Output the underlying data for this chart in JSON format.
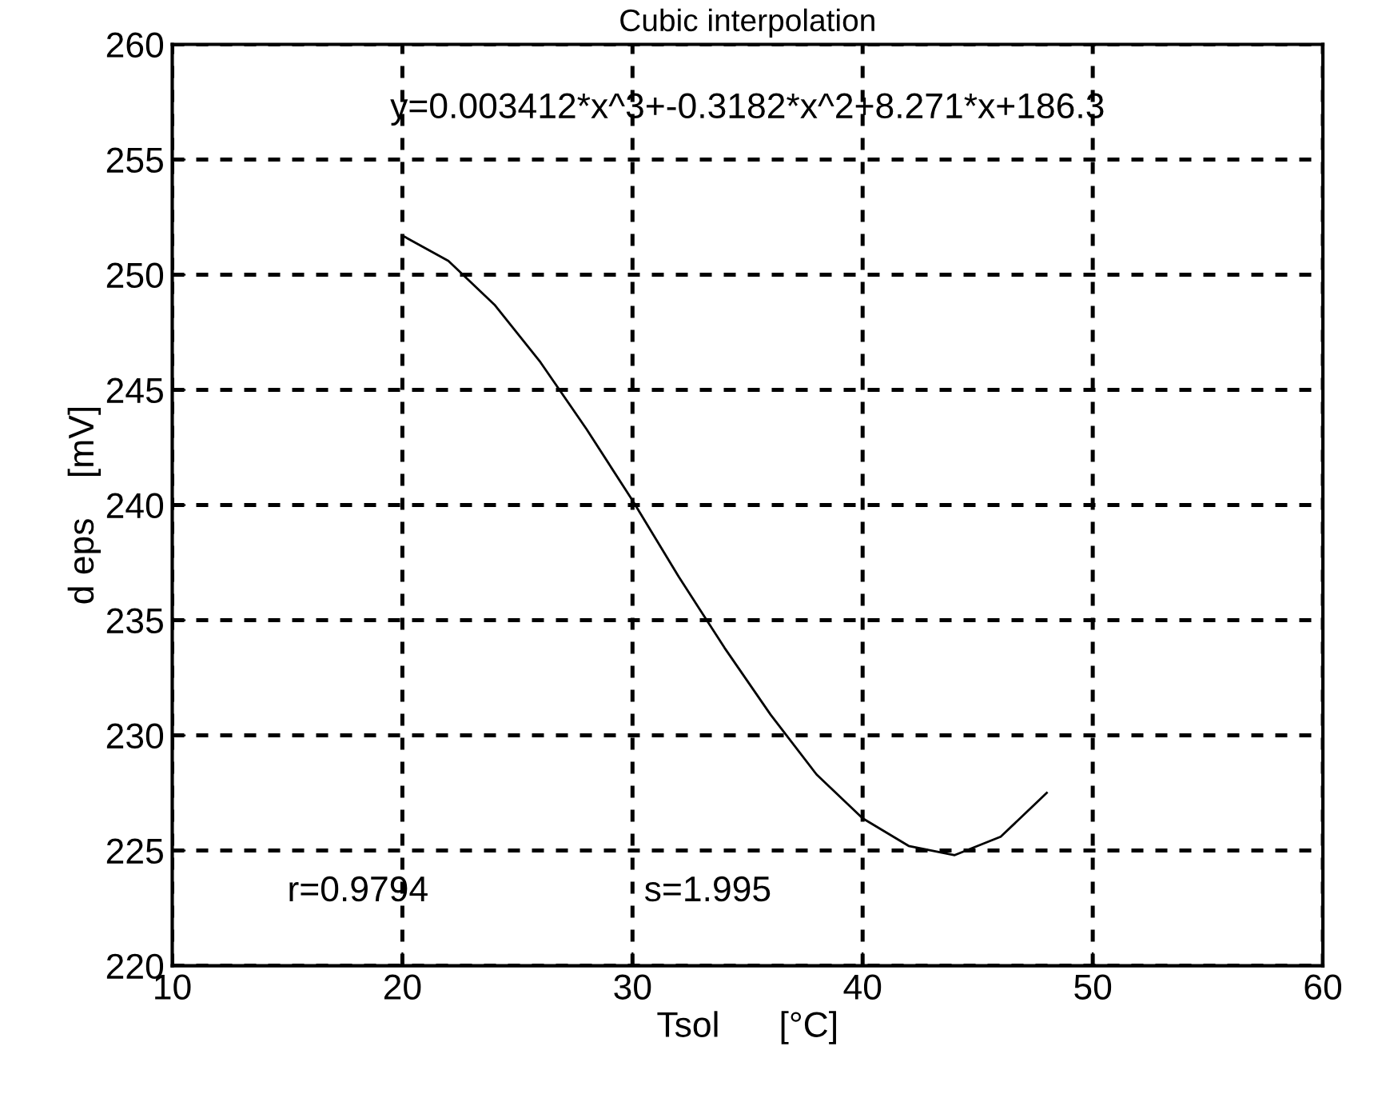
{
  "chart_data": {
    "type": "line",
    "title": "Cubic interpolation",
    "xlabel": "Tsol      [°C]",
    "ylabel": "d eps    [mV]",
    "x": [
      20,
      22,
      24,
      26,
      28,
      30,
      32,
      34,
      36,
      38,
      40,
      42,
      44,
      46,
      48
    ],
    "series": [
      {
        "color": "#000000",
        "values": [
          251.7,
          250.6,
          248.7,
          246.2,
          243.3,
          240.2,
          236.9,
          233.8,
          230.9,
          228.3,
          226.4,
          225.2,
          224.8,
          225.6,
          227.5
        ]
      }
    ],
    "xlim": [
      10,
      60
    ],
    "xticks": [
      10,
      20,
      30,
      40,
      50,
      60
    ],
    "ylim": [
      220,
      260
    ],
    "yticks": [
      220,
      225,
      230,
      235,
      240,
      245,
      250,
      255,
      260
    ],
    "grid": true,
    "marker": "none",
    "line_style": "solid",
    "annotations": [
      "y=0.003412*x^3+-0.3182*x^2+8.271*x+186.3",
      "r=0.9794",
      "s=1.995"
    ]
  }
}
